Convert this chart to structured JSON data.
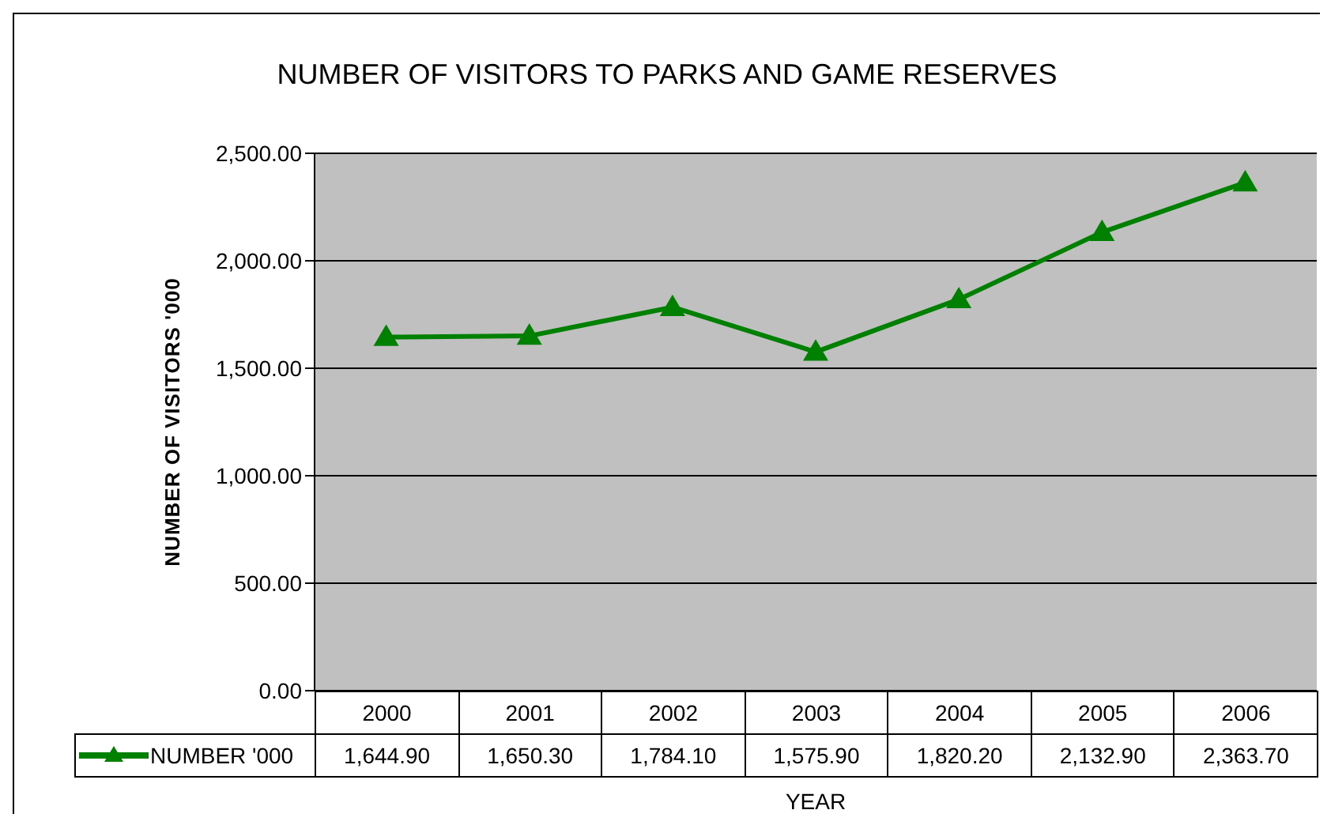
{
  "chart_data": {
    "type": "line",
    "title": "NUMBER OF VISITORS TO PARKS AND GAME RESERVES",
    "xlabel": "YEAR",
    "ylabel": "NUMBER OF VISITORS '000",
    "categories": [
      "2000",
      "2001",
      "2002",
      "2003",
      "2004",
      "2005",
      "2006"
    ],
    "series": [
      {
        "name": "NUMBER '000",
        "color": "#008000",
        "values": [
          1644.9,
          1650.3,
          1784.1,
          1575.9,
          1820.2,
          2132.9,
          2363.7
        ],
        "value_labels": [
          "1,644.90",
          "1,650.30",
          "1,784.10",
          "1,575.90",
          "1,820.20",
          "2,132.90",
          "2,363.70"
        ]
      }
    ],
    "ylim": [
      0,
      2500
    ],
    "yticks": [
      {
        "value": 0,
        "label": "0.00"
      },
      {
        "value": 500,
        "label": "500.00"
      },
      {
        "value": 1000,
        "label": "1,000.00"
      },
      {
        "value": 1500,
        "label": "1,500.00"
      },
      {
        "value": 2000,
        "label": "2,000.00"
      },
      {
        "value": 2500,
        "label": "2,500.00"
      }
    ],
    "grid": "y",
    "legend": "bottom",
    "marker": "triangle",
    "line_style": "solid"
  }
}
